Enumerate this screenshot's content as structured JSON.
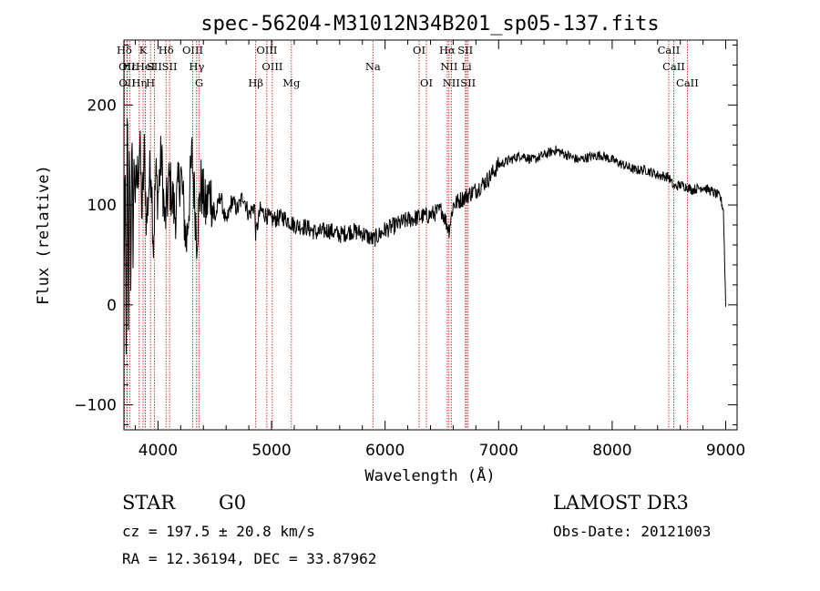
{
  "chart_data": {
    "type": "line",
    "title": "spec-56204-M31012N34B201_sp05-137.fits",
    "xlabel": "Wavelength (Å)",
    "ylabel": "Flux (relative)",
    "xlim": [
      3700,
      9100
    ],
    "ylim": [
      -125,
      265
    ],
    "xticks": [
      4000,
      5000,
      6000,
      7000,
      8000,
      9000
    ],
    "xtick_labels": [
      "4000",
      "5000",
      "6000",
      "7000",
      "8000",
      "9000"
    ],
    "yticks": [
      -100,
      0,
      100,
      200
    ],
    "ytick_labels": [
      "−100",
      "0",
      "100",
      "200"
    ],
    "series": [
      {
        "name": "flux",
        "x": [
          3700,
          3710,
          3720,
          3730,
          3740,
          3750,
          3760,
          3770,
          3780,
          3790,
          3800,
          3820,
          3840,
          3860,
          3880,
          3900,
          3920,
          3940,
          3960,
          3980,
          4000,
          4030,
          4060,
          4100,
          4150,
          4200,
          4250,
          4300,
          4340,
          4380,
          4420,
          4460,
          4500,
          4550,
          4600,
          4650,
          4700,
          4750,
          4800,
          4850,
          4861,
          4900,
          4950,
          5000,
          5100,
          5200,
          5300,
          5400,
          5500,
          5600,
          5700,
          5800,
          5893,
          6000,
          6100,
          6200,
          6300,
          6400,
          6500,
          6563,
          6600,
          6700,
          6800,
          6900,
          7000,
          7100,
          7200,
          7300,
          7400,
          7500,
          7600,
          7700,
          7800,
          7900,
          8000,
          8100,
          8200,
          8300,
          8400,
          8498,
          8542,
          8600,
          8662,
          8700,
          8800,
          8900,
          8950,
          8980,
          9000
        ],
        "values": [
          20,
          140,
          -60,
          220,
          -40,
          180,
          30,
          160,
          60,
          150,
          110,
          130,
          160,
          90,
          150,
          80,
          120,
          140,
          60,
          130,
          110,
          150,
          80,
          125,
          90,
          135,
          60,
          150,
          70,
          120,
          95,
          115,
          85,
          110,
          80,
          105,
          95,
          110,
          90,
          100,
          70,
          95,
          90,
          85,
          88,
          80,
          78,
          72,
          75,
          70,
          74,
          72,
          65,
          75,
          80,
          85,
          88,
          90,
          95,
          75,
          100,
          108,
          115,
          125,
          140,
          145,
          150,
          145,
          150,
          155,
          150,
          145,
          148,
          150,
          145,
          140,
          135,
          135,
          130,
          128,
          118,
          120,
          118,
          115,
          118,
          112,
          108,
          95,
          0
        ]
      }
    ],
    "spectral_lines": [
      {
        "label": "Hδ",
        "wave": 3704,
        "row": 0
      },
      {
        "label": "OII",
        "wave": 3727,
        "row": 1
      },
      {
        "label": "OII",
        "wave": 3729,
        "row": 2
      },
      {
        "label": "Hε",
        "wave": 3750,
        "row": 1
      },
      {
        "label": "Hη",
        "wave": 3835,
        "row": 2
      },
      {
        "label": "K",
        "wave": 3869,
        "row": 0
      },
      {
        "label": "HeI",
        "wave": 3889,
        "row": 1
      },
      {
        "label": "H",
        "wave": 3934,
        "row": 2
      },
      {
        "label": "SII",
        "wave": 3968,
        "row": 1
      },
      {
        "label": "Hδ",
        "wave": 4071,
        "row": 0
      },
      {
        "label": "SII",
        "wave": 4102,
        "row": 1
      },
      {
        "label": "OIII",
        "wave": 4306,
        "row": 0
      },
      {
        "label": "Hγ",
        "wave": 4341,
        "row": 1
      },
      {
        "label": "G",
        "wave": 4363,
        "row": 2
      },
      {
        "label": "Hβ",
        "wave": 4861,
        "row": 2
      },
      {
        "label": "OIII",
        "wave": 4959,
        "row": 0
      },
      {
        "label": "OIII",
        "wave": 5007,
        "row": 1
      },
      {
        "label": "Mg",
        "wave": 5175,
        "row": 2
      },
      {
        "label": "Na",
        "wave": 5893,
        "row": 1
      },
      {
        "label": "OI",
        "wave": 6300,
        "row": 0
      },
      {
        "label": "OI",
        "wave": 6364,
        "row": 2
      },
      {
        "label": "Hα",
        "wave": 6548,
        "row": 0
      },
      {
        "label": "NII",
        "wave": 6563,
        "row": 1
      },
      {
        "label": "NII",
        "wave": 6583,
        "row": 2
      },
      {
        "label": "SII",
        "wave": 6707,
        "row": 0
      },
      {
        "label": "Li",
        "wave": 6717,
        "row": 1
      },
      {
        "label": "SII",
        "wave": 6731,
        "row": 2
      },
      {
        "label": "CaII",
        "wave": 8498,
        "row": 0
      },
      {
        "label": "CaII",
        "wave": 8542,
        "row": 1
      },
      {
        "label": "CaII",
        "wave": 8662,
        "row": 2
      }
    ]
  },
  "info": {
    "object_class": "STAR",
    "subclass": "G0",
    "survey": "LAMOST DR3",
    "redshift": "cz = 197.5 ± 20.8 km/s",
    "obs_date": "Obs-Date: 20121003",
    "coords": "RA =  12.36194, DEC =  33.87962"
  },
  "colors": {
    "spectrum": "#000000",
    "line_markers": "#cc0000",
    "axes": "#000000"
  }
}
